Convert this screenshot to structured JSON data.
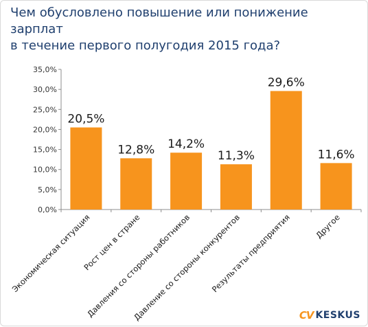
{
  "chart_data": {
    "type": "bar",
    "title": "Чем обусловлено повышение или понижение зарплат\nв течение первого полугодия 2015 года?",
    "categories": [
      "Экономическая ситуация",
      "Рост цен в стране",
      "Давления со стороны работников",
      "Давление со стороны конкурентов",
      "Результаты предприятия",
      "Другое"
    ],
    "values": [
      20.5,
      12.8,
      14.2,
      11.3,
      29.6,
      11.6
    ],
    "data_labels": [
      "20,5%",
      "12,8%",
      "14,2%",
      "11,3%",
      "29,6%",
      "11,6%"
    ],
    "ylim": [
      0,
      35
    ],
    "y_ticks": [
      0,
      5,
      10,
      15,
      20,
      25,
      30,
      35
    ],
    "y_tick_labels": [
      "0,0%",
      "5,0%",
      "10,0%",
      "15,0%",
      "20,0%",
      "25,0%",
      "30,0%",
      "35,0%"
    ],
    "xlabel": "",
    "ylabel": "",
    "grid": false,
    "legend": "none",
    "bar_color": "#f7941d"
  },
  "branding": {
    "logo_cv": "CV",
    "logo_keskus": "KESKUS",
    "cv_color": "#f7941d",
    "keskus_color": "#1f3f6e"
  }
}
